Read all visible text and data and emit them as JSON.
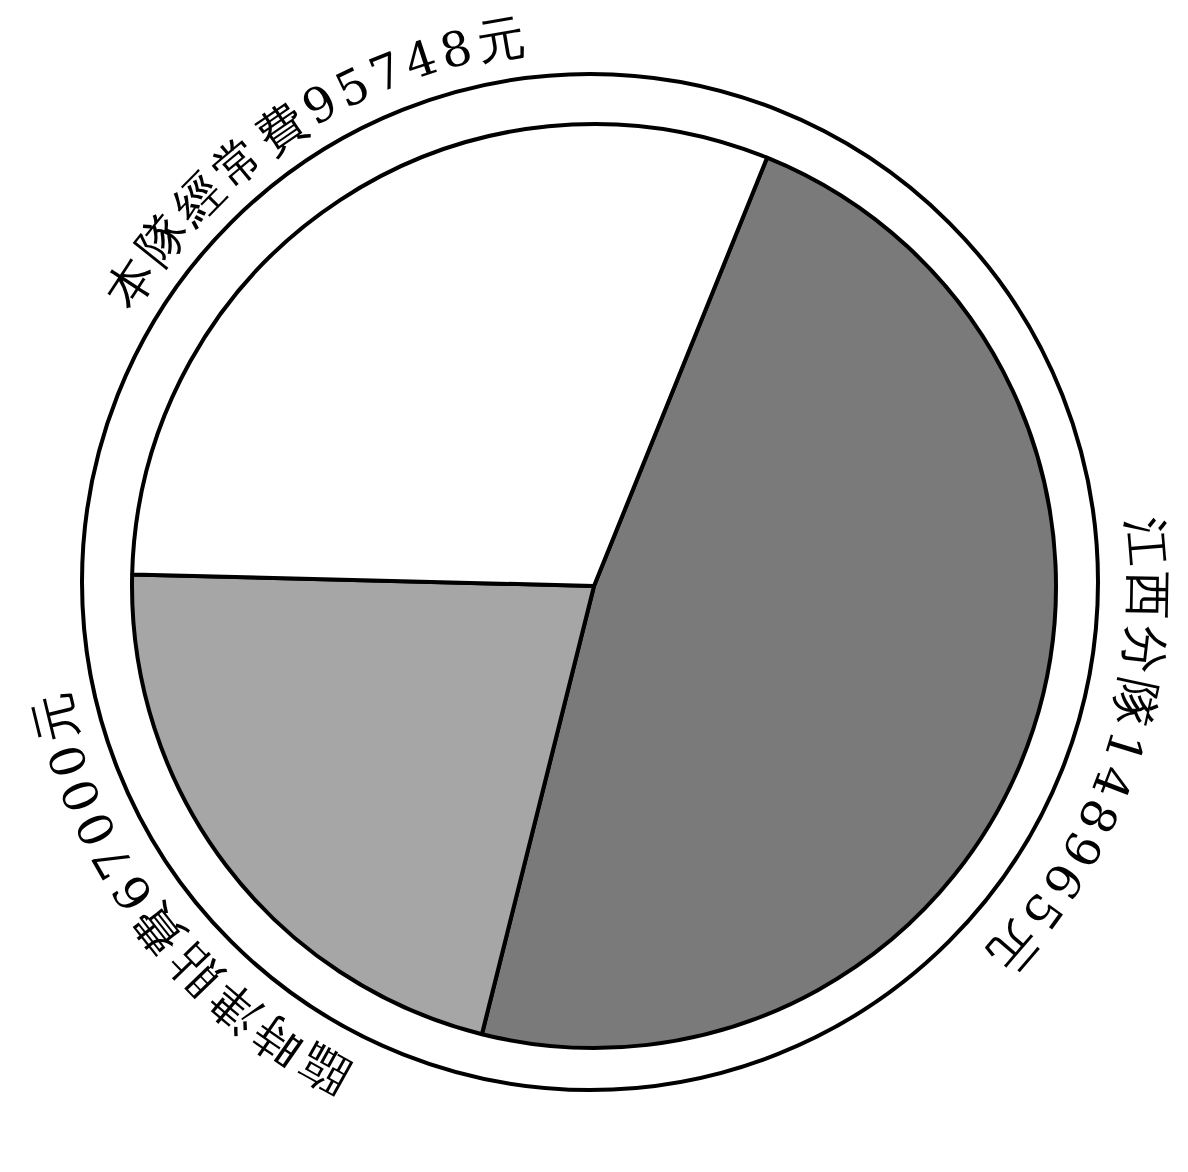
{
  "chart_data": {
    "type": "pie",
    "categories": [
      "江西分隊",
      "臨時津貼費",
      "本隊經常費"
    ],
    "values": [
      148965,
      67000,
      95748
    ],
    "colors": [
      "#7a7a7a",
      "#a6a6a6",
      "#ffffff"
    ],
    "value_labels": [
      "148965元",
      "67000元",
      "95748元"
    ],
    "legend": false
  }
}
